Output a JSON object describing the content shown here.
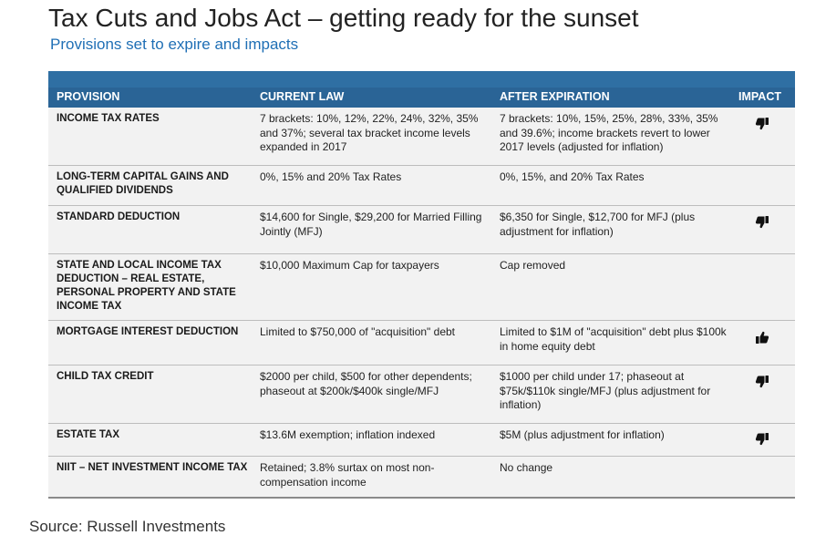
{
  "title": "Tax Cuts and Jobs Act – getting ready for the sunset",
  "subtitle": "Provisions set to expire and impacts",
  "table": {
    "headers": {
      "provision": "PROVISION",
      "current": "CURRENT LAW",
      "after": "AFTER EXPIRATION",
      "impact": "IMPACT"
    },
    "rows": [
      {
        "provision": "INCOME TAX RATES",
        "current": "7 brackets: 10%, 12%, 22%, 24%, 32%, 35% and 37%; several tax bracket income levels expanded in 2017",
        "after": "7 brackets: 10%, 15%, 25%, 28%, 33%, 35% and 39.6%; income brackets revert to lower 2017 levels (adjusted for inflation)",
        "impact": "thumbs-down"
      },
      {
        "provision": "LONG-TERM CAPITAL GAINS AND QUALIFIED DIVIDENDS",
        "current": "0%, 15% and 20% Tax Rates",
        "after": "0%, 15%, and 20% Tax Rates",
        "impact": ""
      },
      {
        "provision": "STANDARD DEDUCTION",
        "current": "$14,600 for Single, $29,200 for Married Filling Jointly (MFJ)",
        "after": "$6,350 for Single, $12,700 for MFJ (plus adjustment for inflation)",
        "impact": "thumbs-down"
      },
      {
        "provision": "STATE AND LOCAL INCOME TAX DEDUCTION – REAL ESTATE, PERSONAL PROPERTY AND STATE INCOME TAX",
        "current": "$10,000 Maximum Cap for taxpayers",
        "after": "Cap removed",
        "impact": ""
      },
      {
        "provision": "MORTGAGE INTEREST DEDUCTION",
        "current": "Limited to $750,000 of \"acquisition\" debt",
        "after": "Limited to $1M of \"acquisition\" debt plus $100k in home equity debt",
        "impact": "thumbs-up"
      },
      {
        "provision": "CHILD TAX CREDIT",
        "current": "$2000 per child, $500 for other dependents; phaseout at $200k/$400k single/MFJ",
        "after": "$1000 per child under 17; phaseout at $75k/$110k single/MFJ (plus adjustment for inflation)",
        "impact": "thumbs-down"
      },
      {
        "provision": "ESTATE TAX",
        "current": "$13.6M exemption; inflation indexed",
        "after": "$5M (plus adjustment for inflation)",
        "impact": "thumbs-down"
      },
      {
        "provision": "NIIT – NET INVESTMENT INCOME TAX",
        "current": "Retained; 3.8% surtax on most non-compensation income",
        "after": "No change",
        "impact": ""
      }
    ]
  },
  "source": "Source: Russell Investments",
  "colors": {
    "header_bg": "#2a6496",
    "top_bar": "#2f6fa3",
    "row_bg": "#f2f2f2",
    "subtitle": "#1f6fb5"
  }
}
